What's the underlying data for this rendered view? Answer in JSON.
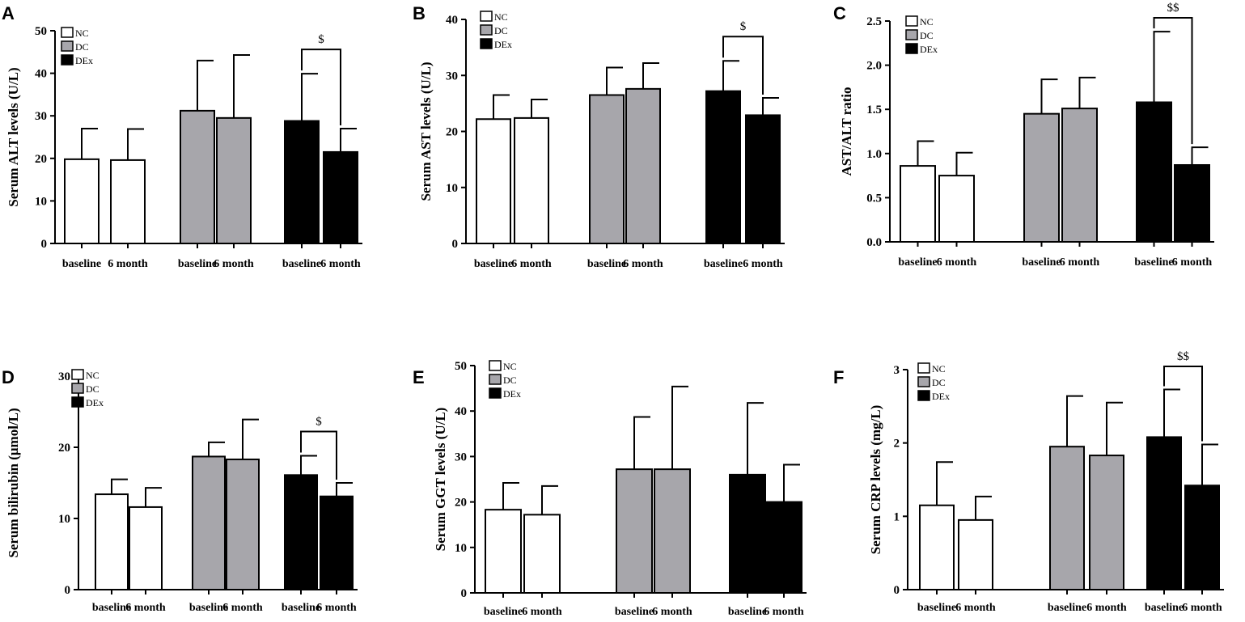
{
  "figure_type": "grouped bar charts with error bars",
  "colors": {
    "NC": "#ffffff",
    "DC": "#a7a6ab",
    "DEx": "#000000",
    "axis": "#000000"
  },
  "chart_data": [
    {
      "panel": "A",
      "type": "bar",
      "ylabel": "Serum ALT levels (U/L)",
      "ylim": [
        0,
        50
      ],
      "yticks": [
        0,
        10,
        20,
        30,
        40,
        50
      ],
      "legend": [
        "NC",
        "DC",
        "DEx"
      ],
      "legend_position": "top-left",
      "categories": [
        "baseline",
        "6 month",
        "baseline",
        "6 month",
        "baseline",
        "6 month"
      ],
      "groups": [
        "NC",
        "NC",
        "DC",
        "DC",
        "DEx",
        "DEx"
      ],
      "values": [
        19.8,
        19.6,
        31.2,
        29.5,
        28.8,
        21.5
      ],
      "errors": [
        7.2,
        7.3,
        11.8,
        14.8,
        11.1,
        5.5
      ],
      "significance": {
        "label": "$",
        "between": [
          4,
          5
        ]
      }
    },
    {
      "panel": "B",
      "type": "bar",
      "ylabel": "Serum AST levels (U/L)",
      "ylim": [
        0,
        40
      ],
      "yticks": [
        0,
        10,
        20,
        30,
        40
      ],
      "legend": [
        "NC",
        "DC",
        "DEx"
      ],
      "legend_position": "top-left",
      "categories": [
        "baseline",
        "6 month",
        "baseline",
        "6 month",
        "baseline",
        "6 month"
      ],
      "groups": [
        "NC",
        "NC",
        "DC",
        "DC",
        "DEx",
        "DEx"
      ],
      "values": [
        22.2,
        22.4,
        26.5,
        27.6,
        27.2,
        22.9
      ],
      "errors": [
        4.3,
        3.3,
        4.9,
        4.6,
        5.4,
        3.1
      ],
      "significance": {
        "label": "$",
        "between": [
          4,
          5
        ]
      }
    },
    {
      "panel": "C",
      "type": "bar",
      "ylabel": "AST/ALT ratio",
      "ylim": [
        0,
        2.5
      ],
      "yticks": [
        "0.0",
        "0.5",
        "1.0",
        "1.5",
        "2.0",
        "2.5"
      ],
      "legend": [
        "NC",
        "DC",
        "DEx"
      ],
      "legend_position": "top-left",
      "categories": [
        "baseline",
        "6 month",
        "baseline",
        "6 month",
        "baseline",
        "6 month"
      ],
      "groups": [
        "NC",
        "NC",
        "DC",
        "DC",
        "DEx",
        "DEx"
      ],
      "values": [
        0.86,
        0.75,
        1.45,
        1.51,
        1.58,
        0.87
      ],
      "errors": [
        0.28,
        0.26,
        0.39,
        0.35,
        0.8,
        0.2
      ],
      "significance": {
        "label": "$$",
        "between": [
          4,
          5
        ]
      }
    },
    {
      "panel": "D",
      "type": "bar",
      "ylabel": "Serum bilirubin (μmol/L)",
      "ylim": [
        0,
        30
      ],
      "yticks": [
        0,
        10,
        20,
        30
      ],
      "legend": [
        "NC",
        "DC",
        "DEx"
      ],
      "legend_position": "top-left",
      "categories": [
        "baseline",
        "6 month",
        "baseline",
        "6 month",
        "baseline",
        "6 month"
      ],
      "groups": [
        "NC",
        "NC",
        "DC",
        "DC",
        "DEx",
        "DEx"
      ],
      "values": [
        13.4,
        11.6,
        18.7,
        18.3,
        16.1,
        13.1
      ],
      "errors": [
        2.1,
        2.7,
        2.0,
        5.6,
        2.7,
        1.9
      ],
      "significance": {
        "label": "$",
        "between": [
          4,
          5
        ]
      }
    },
    {
      "panel": "E",
      "type": "bar",
      "ylabel": "Serum GGT levels (U/L)",
      "ylim": [
        0,
        50
      ],
      "yticks": [
        0,
        10,
        20,
        30,
        40,
        50
      ],
      "legend": [
        "NC",
        "DC",
        "DEx"
      ],
      "legend_position": "top-left",
      "categories": [
        "baseline",
        "6 month",
        "baseline",
        "6 month",
        "baseline",
        "6 month"
      ],
      "groups": [
        "NC",
        "NC",
        "DC",
        "DC",
        "DEx",
        "DEx"
      ],
      "values": [
        18.3,
        17.2,
        27.2,
        27.2,
        26.0,
        20.0
      ],
      "errors": [
        5.9,
        6.3,
        11.5,
        18.2,
        15.8,
        8.2
      ],
      "significance": null
    },
    {
      "panel": "F",
      "type": "bar",
      "ylabel": "Serum CRP levels (mg/L)",
      "ylim": [
        0,
        3
      ],
      "yticks": [
        0,
        1,
        2,
        3
      ],
      "legend": [
        "NC",
        "DC",
        "DEx"
      ],
      "legend_position": "top-left",
      "categories": [
        "baseline",
        "6 month",
        "baseline",
        "6 month",
        "baseline",
        "6 month"
      ],
      "groups": [
        "NC",
        "NC",
        "DC",
        "DC",
        "DEx",
        "DEx"
      ],
      "values": [
        1.15,
        0.95,
        1.95,
        1.83,
        2.08,
        1.42
      ],
      "errors": [
        0.59,
        0.32,
        0.69,
        0.72,
        0.65,
        0.56
      ],
      "significance": {
        "label": "$$",
        "between": [
          4,
          5
        ]
      }
    }
  ]
}
